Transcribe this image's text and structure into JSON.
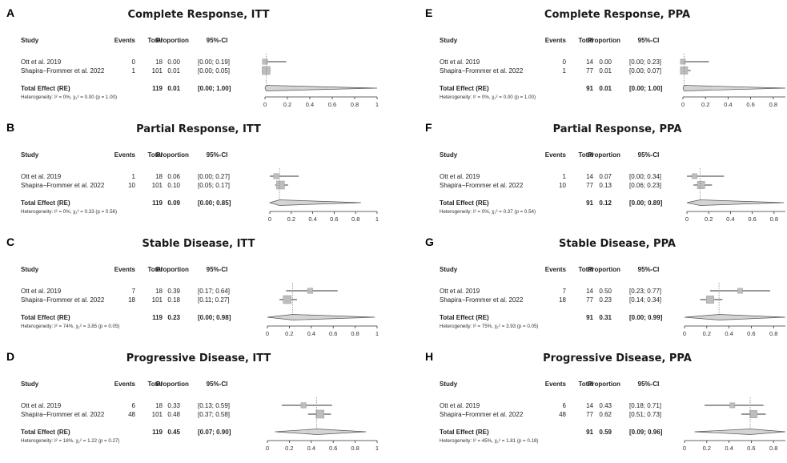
{
  "headers": {
    "study": "Study",
    "events": "Events",
    "total": "Total",
    "proportion": "Proportion",
    "ci": "95%-CI"
  },
  "chart_data": [
    {
      "type": "forest",
      "letter": "A",
      "title": "Complete Response, ITT",
      "studies": [
        {
          "study": "Ott et al. 2019",
          "events": "0",
          "total": "18",
          "prop_text": "0.00",
          "ci_text": "[0.00; 0.19]",
          "p": 0.0,
          "lo": 0.0,
          "hi": 0.19
        },
        {
          "study": "Shapira−Frommer et al. 2022",
          "events": "1",
          "total": "101",
          "prop_text": "0.01",
          "ci_text": "[0.00; 0.05]",
          "p": 0.01,
          "lo": 0.0,
          "hi": 0.05
        }
      ],
      "total": {
        "label": "Total Effect (RE)",
        "total": "119",
        "prop_text": "0.01",
        "ci_text": "[0.00; 1.00]",
        "p": 0.01,
        "lo": 0.0,
        "hi": 1.0
      },
      "heterogeneity": "Heterogeneity: I² = 0%, χ₁² = 0.00 (p = 1.00)",
      "ticks": [
        "0",
        "0.2",
        "0.4",
        "0.6",
        "0.8",
        "1"
      ],
      "xlim": [
        0,
        1
      ]
    },
    {
      "type": "forest",
      "letter": "B",
      "title": "Partial Response, ITT",
      "studies": [
        {
          "study": "Ott et al. 2019",
          "events": "1",
          "total": "18",
          "prop_text": "0.06",
          "ci_text": "[0.00; 0.27]",
          "p": 0.06,
          "lo": 0.0,
          "hi": 0.27
        },
        {
          "study": "Shapira−Frommer et al. 2022",
          "events": "10",
          "total": "101",
          "prop_text": "0.10",
          "ci_text": "[0.05; 0.17]",
          "p": 0.1,
          "lo": 0.05,
          "hi": 0.17
        }
      ],
      "total": {
        "label": "Total Effect (RE)",
        "total": "119",
        "prop_text": "0.09",
        "ci_text": "[0.00; 0.85]",
        "p": 0.09,
        "lo": 0.0,
        "hi": 0.85
      },
      "heterogeneity": "Heterogeneity: I² = 0%, χ₁² = 0.33 (p = 0.56)",
      "ticks": [
        "0",
        "0.2",
        "0.4",
        "0.6",
        "0.8",
        "1"
      ],
      "xlim": [
        0,
        1
      ]
    },
    {
      "type": "forest",
      "letter": "C",
      "title": "Stable Disease, ITT",
      "studies": [
        {
          "study": "Ott et al. 2019",
          "events": "7",
          "total": "18",
          "prop_text": "0.39",
          "ci_text": "[0.17; 0.64]",
          "p": 0.39,
          "lo": 0.17,
          "hi": 0.64
        },
        {
          "study": "Shapira−Frommer et al. 2022",
          "events": "18",
          "total": "101",
          "prop_text": "0.18",
          "ci_text": "[0.11; 0.27]",
          "p": 0.18,
          "lo": 0.11,
          "hi": 0.27
        }
      ],
      "total": {
        "label": "Total Effect (RE)",
        "total": "119",
        "prop_text": "0.23",
        "ci_text": "[0.00; 0.98]",
        "p": 0.23,
        "lo": 0.0,
        "hi": 0.98
      },
      "heterogeneity": "Heterogeneity: I² = 74%, χ₁² = 3.85 (p = 0.05)",
      "ticks": [
        "0",
        "0.2",
        "0.4",
        "0.6",
        "0.8",
        "1"
      ],
      "xlim": [
        0,
        1
      ]
    },
    {
      "type": "forest",
      "letter": "D",
      "title": "Progressive Disease, ITT",
      "studies": [
        {
          "study": "Ott et al. 2019",
          "events": "6",
          "total": "18",
          "prop_text": "0.33",
          "ci_text": "[0.13; 0.59]",
          "p": 0.33,
          "lo": 0.13,
          "hi": 0.59
        },
        {
          "study": "Shapira−Frommer et al. 2022",
          "events": "48",
          "total": "101",
          "prop_text": "0.48",
          "ci_text": "[0.37; 0.58]",
          "p": 0.48,
          "lo": 0.37,
          "hi": 0.58
        }
      ],
      "total": {
        "label": "Total Effect (RE)",
        "total": "119",
        "prop_text": "0.45",
        "ci_text": "[0.07; 0.90]",
        "p": 0.45,
        "lo": 0.07,
        "hi": 0.9
      },
      "heterogeneity": "Heterogeneity: I² = 18%, χ₁² = 1.22 (p = 0.27)",
      "ticks": [
        "0",
        "0.2",
        "0.4",
        "0.6",
        "0.8",
        "1"
      ],
      "xlim": [
        0,
        1
      ]
    },
    {
      "type": "forest",
      "letter": "E",
      "title": "Complete Response, PPA",
      "studies": [
        {
          "study": "Ott et al. 2019",
          "events": "0",
          "total": "14",
          "prop_text": "0.00",
          "ci_text": "[0.00; 0.23]",
          "p": 0.0,
          "lo": 0.0,
          "hi": 0.23
        },
        {
          "study": "Shapira−Frommer et al. 2022",
          "events": "1",
          "total": "77",
          "prop_text": "0.01",
          "ci_text": "[0.00; 0.07]",
          "p": 0.01,
          "lo": 0.0,
          "hi": 0.07
        }
      ],
      "total": {
        "label": "Total Effect (RE)",
        "total": "91",
        "prop_text": "0.01",
        "ci_text": "[0.00; 1.00]",
        "p": 0.01,
        "lo": 0.0,
        "hi": 1.0
      },
      "heterogeneity": "Heterogeneity: I² = 0%, χ₁² = 0.00 (p = 1.00)",
      "ticks": [
        "0",
        "0.2",
        "0.4",
        "0.6",
        "0.8"
      ],
      "xlim": [
        0,
        1
      ]
    },
    {
      "type": "forest",
      "letter": "F",
      "title": "Partial Response, PPA",
      "studies": [
        {
          "study": "Ott et al. 2019",
          "events": "1",
          "total": "14",
          "prop_text": "0.07",
          "ci_text": "[0.00; 0.34]",
          "p": 0.07,
          "lo": 0.0,
          "hi": 0.34
        },
        {
          "study": "Shapira−Frommer et al. 2022",
          "events": "10",
          "total": "77",
          "prop_text": "0.13",
          "ci_text": "[0.06; 0.23]",
          "p": 0.13,
          "lo": 0.06,
          "hi": 0.23
        }
      ],
      "total": {
        "label": "Total Effect (RE)",
        "total": "91",
        "prop_text": "0.12",
        "ci_text": "[0.00; 0.89]",
        "p": 0.12,
        "lo": 0.0,
        "hi": 0.89
      },
      "heterogeneity": "Heterogeneity: I² = 0%, χ₁² = 0.37 (p = 0.54)",
      "ticks": [
        "0",
        "0.2",
        "0.4",
        "0.6",
        "0.8"
      ],
      "xlim": [
        0,
        1
      ]
    },
    {
      "type": "forest",
      "letter": "G",
      "title": "Stable Disease, PPA",
      "studies": [
        {
          "study": "Ott et al. 2019",
          "events": "7",
          "total": "14",
          "prop_text": "0.50",
          "ci_text": "[0.23; 0.77]",
          "p": 0.5,
          "lo": 0.23,
          "hi": 0.77
        },
        {
          "study": "Shapira−Frommer et al. 2022",
          "events": "18",
          "total": "77",
          "prop_text": "0.23",
          "ci_text": "[0.14; 0.34]",
          "p": 0.23,
          "lo": 0.14,
          "hi": 0.34
        }
      ],
      "total": {
        "label": "Total Effect (RE)",
        "total": "91",
        "prop_text": "0.31",
        "ci_text": "[0.00; 0.99]",
        "p": 0.31,
        "lo": 0.0,
        "hi": 0.99
      },
      "heterogeneity": "Heterogeneity: I² = 75%, χ₁² = 3.93 (p = 0.05)",
      "ticks": [
        "0",
        "0.2",
        "0.4",
        "0.6",
        "0.8"
      ],
      "xlim": [
        0,
        1
      ]
    },
    {
      "type": "forest",
      "letter": "H",
      "title": "Progressive Disease, PPA",
      "studies": [
        {
          "study": "Ott et al. 2019",
          "events": "6",
          "total": "14",
          "prop_text": "0.43",
          "ci_text": "[0.18; 0.71]",
          "p": 0.43,
          "lo": 0.18,
          "hi": 0.71
        },
        {
          "study": "Shapira−Frommer et al. 2022",
          "events": "48",
          "total": "77",
          "prop_text": "0.62",
          "ci_text": "[0.51; 0.73]",
          "p": 0.62,
          "lo": 0.51,
          "hi": 0.73
        }
      ],
      "total": {
        "label": "Total Effect (RE)",
        "total": "91",
        "prop_text": "0.59",
        "ci_text": "[0.09; 0.96]",
        "p": 0.59,
        "lo": 0.09,
        "hi": 0.96
      },
      "heterogeneity": "Heterogeneity: I² = 45%, χ₁² = 1.81 (p = 0.18)",
      "ticks": [
        "0",
        "0.2",
        "0.4",
        "0.6",
        "0.8"
      ],
      "xlim": [
        0,
        1
      ]
    }
  ]
}
